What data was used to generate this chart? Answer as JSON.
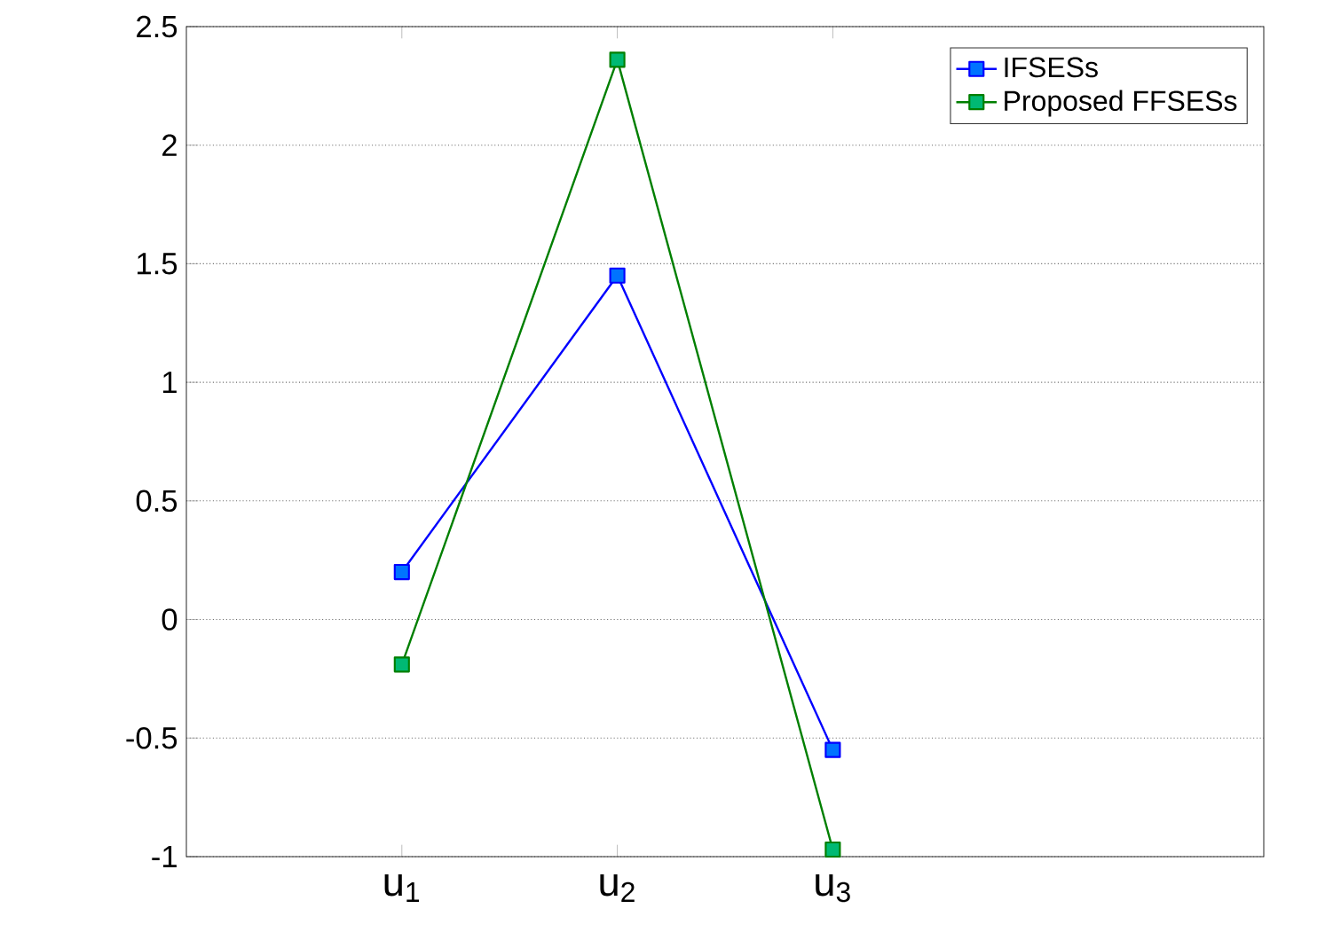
{
  "chart_data": {
    "type": "line",
    "categories": [
      "u$_{1}$",
      "u$_{2}$",
      "u$_{3}$"
    ],
    "series": [
      {
        "name": "IFSESs",
        "color": "#0000ff",
        "values": [
          0.2,
          1.45,
          -0.55
        ]
      },
      {
        "name": "Proposed FFSESs",
        "color": "#007f00",
        "values": [
          -0.19,
          2.36,
          -0.97
        ]
      }
    ],
    "ylim": [
      -1,
      2.5
    ],
    "yticks": [
      -1,
      -0.5,
      0,
      0.5,
      1,
      1.5,
      2,
      2.5
    ],
    "grid": "y",
    "legend": "top right",
    "marker": "square",
    "line_style": "solid"
  }
}
